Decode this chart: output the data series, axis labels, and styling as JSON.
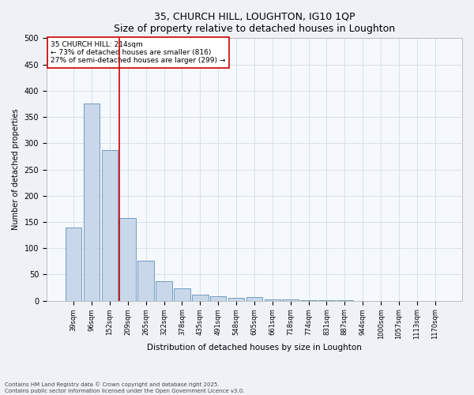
{
  "title": "35, CHURCH HILL, LOUGHTON, IG10 1QP",
  "subtitle": "Size of property relative to detached houses in Loughton",
  "xlabel": "Distribution of detached houses by size in Loughton",
  "ylabel": "Number of detached properties",
  "categories": [
    "39sqm",
    "96sqm",
    "152sqm",
    "209sqm",
    "265sqm",
    "322sqm",
    "378sqm",
    "435sqm",
    "491sqm",
    "548sqm",
    "605sqm",
    "661sqm",
    "718sqm",
    "774sqm",
    "831sqm",
    "887sqm",
    "944sqm",
    "1000sqm",
    "1057sqm",
    "1113sqm",
    "1170sqm"
  ],
  "values": [
    140,
    375,
    287,
    157,
    76,
    37,
    23,
    12,
    8,
    5,
    7,
    2,
    3,
    1,
    1,
    1,
    0,
    0,
    0,
    0,
    0
  ],
  "bar_color": "#c8d8ea",
  "bar_edge_color": "#6090b8",
  "vertical_line_color": "#cc0000",
  "vertical_line_index": 3,
  "annotation_text": "35 CHURCH HILL: 214sqm\n← 73% of detached houses are smaller (816)\n27% of semi-detached houses are larger (299) →",
  "annotation_box_color": "#cc0000",
  "ylim": [
    0,
    500
  ],
  "yticks": [
    0,
    50,
    100,
    150,
    200,
    250,
    300,
    350,
    400,
    450,
    500
  ],
  "footer_line1": "Contains HM Land Registry data © Crown copyright and database right 2025.",
  "footer_line2": "Contains public sector information licensed under the Open Government Licence v3.0.",
  "bg_color": "#eef2f7",
  "plot_bg_color": "#f5f8fc",
  "grid_color": "#ccd8e4"
}
